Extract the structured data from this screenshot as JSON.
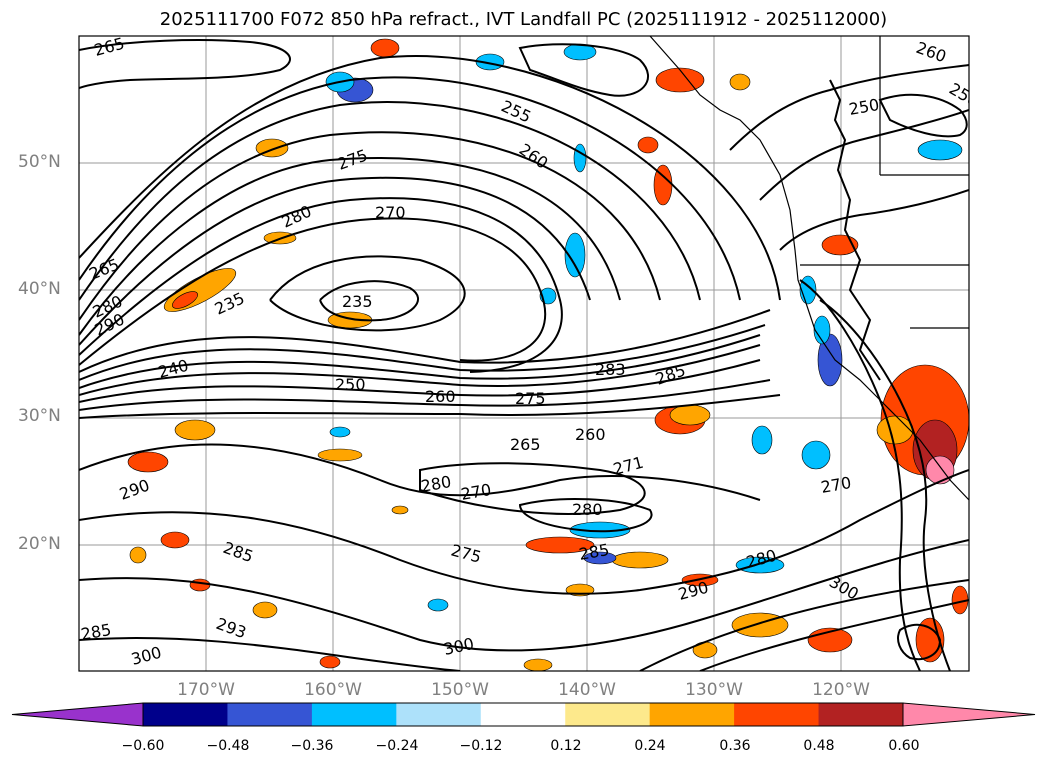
{
  "title": "2025111700 F072 850 hPa refract., IVT Landfall PC (2025111912 - 2025112000)",
  "lat_labels": [
    "50°N",
    "40°N",
    "30°N",
    "20°N"
  ],
  "lon_labels": [
    "170°W",
    "160°W",
    "150°W",
    "140°W",
    "130°W",
    "120°W"
  ],
  "contour_labels": [
    "265",
    "255",
    "250",
    "260",
    "275",
    "280",
    "270",
    "265",
    "235",
    "280",
    "290",
    "235",
    "240",
    "250",
    "260",
    "275",
    "285",
    "283",
    "290",
    "265",
    "260",
    "271",
    "280",
    "270",
    "280",
    "285",
    "275",
    "285",
    "280",
    "290",
    "300",
    "270",
    "300",
    "285",
    "293",
    "300",
    "260",
    "250"
  ],
  "colorbar": {
    "ticks": [
      "−0.60",
      "−0.48",
      "−0.36",
      "−0.24",
      "−0.12",
      "0.12",
      "0.24",
      "0.36",
      "0.48",
      "0.60"
    ],
    "colors": [
      "#9932CC",
      "#00008B",
      "#3655D4",
      "#00BFFF",
      "#ADE1FA",
      "#FFFFFF",
      "#FDE98C",
      "#FFA500",
      "#FF4500",
      "#B22222",
      "#FF88AA"
    ]
  }
}
